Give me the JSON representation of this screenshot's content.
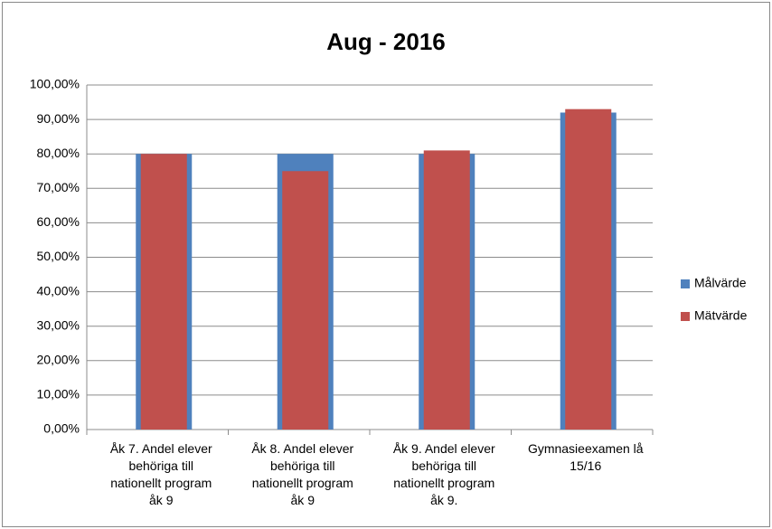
{
  "chart_data": {
    "type": "bar",
    "title": "Aug - 2016",
    "categories": [
      [
        "Åk 7. Andel elever",
        "behöriga till",
        "nationellt program",
        "åk 9"
      ],
      [
        "Åk 8. Andel elever",
        "behöriga till",
        "nationellt program",
        "åk 9"
      ],
      [
        "Åk 9. Andel elever",
        "behöriga till",
        "nationellt program",
        "åk 9."
      ],
      [
        "Gymnasieexamen lå",
        "15/16"
      ]
    ],
    "series": [
      {
        "name": "Målvärde",
        "color": "#4f81bd",
        "values": [
          80,
          80,
          80,
          92
        ]
      },
      {
        "name": "Mätvärde",
        "color": "#c0504d",
        "values": [
          80,
          75,
          81,
          93
        ]
      }
    ],
    "ylim": [
      0,
      100
    ],
    "yticks": [
      {
        "value": 0,
        "label": "0,00%"
      },
      {
        "value": 10,
        "label": "10,00%"
      },
      {
        "value": 20,
        "label": "20,00%"
      },
      {
        "value": 30,
        "label": "30,00%"
      },
      {
        "value": 40,
        "label": "40,00%"
      },
      {
        "value": 50,
        "label": "50,00%"
      },
      {
        "value": 60,
        "label": "60,00%"
      },
      {
        "value": 70,
        "label": "70,00%"
      },
      {
        "value": 80,
        "label": "80,00%"
      },
      {
        "value": 90,
        "label": "90,00%"
      },
      {
        "value": 100,
        "label": "100,00%"
      }
    ],
    "grid": true,
    "legend": "right"
  }
}
